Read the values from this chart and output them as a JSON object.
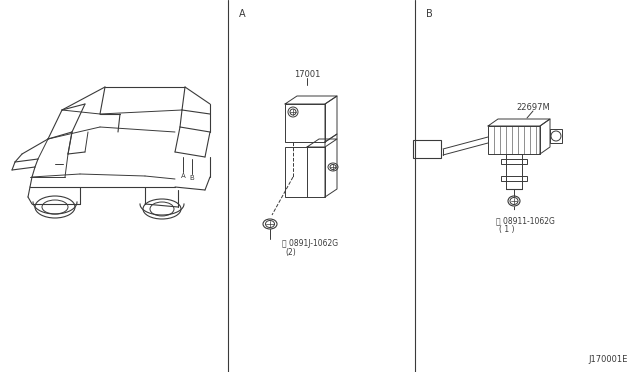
{
  "bg_color": "#ffffff",
  "line_color": "#3a3a3a",
  "text_color": "#3a3a3a",
  "fig_width": 6.4,
  "fig_height": 3.72,
  "dpi": 100,
  "label_a": "A",
  "label_b": "B",
  "part_17001": "17001",
  "part_22697m": "22697M",
  "part_bolt_a": "Ⓝ 0891J-1062G",
  "part_bolt_a2": "(2)",
  "part_bolt_b": "Ⓝ 08911-1062G",
  "part_bolt_b2": "( 1 )",
  "diagram_id": "J170001E"
}
